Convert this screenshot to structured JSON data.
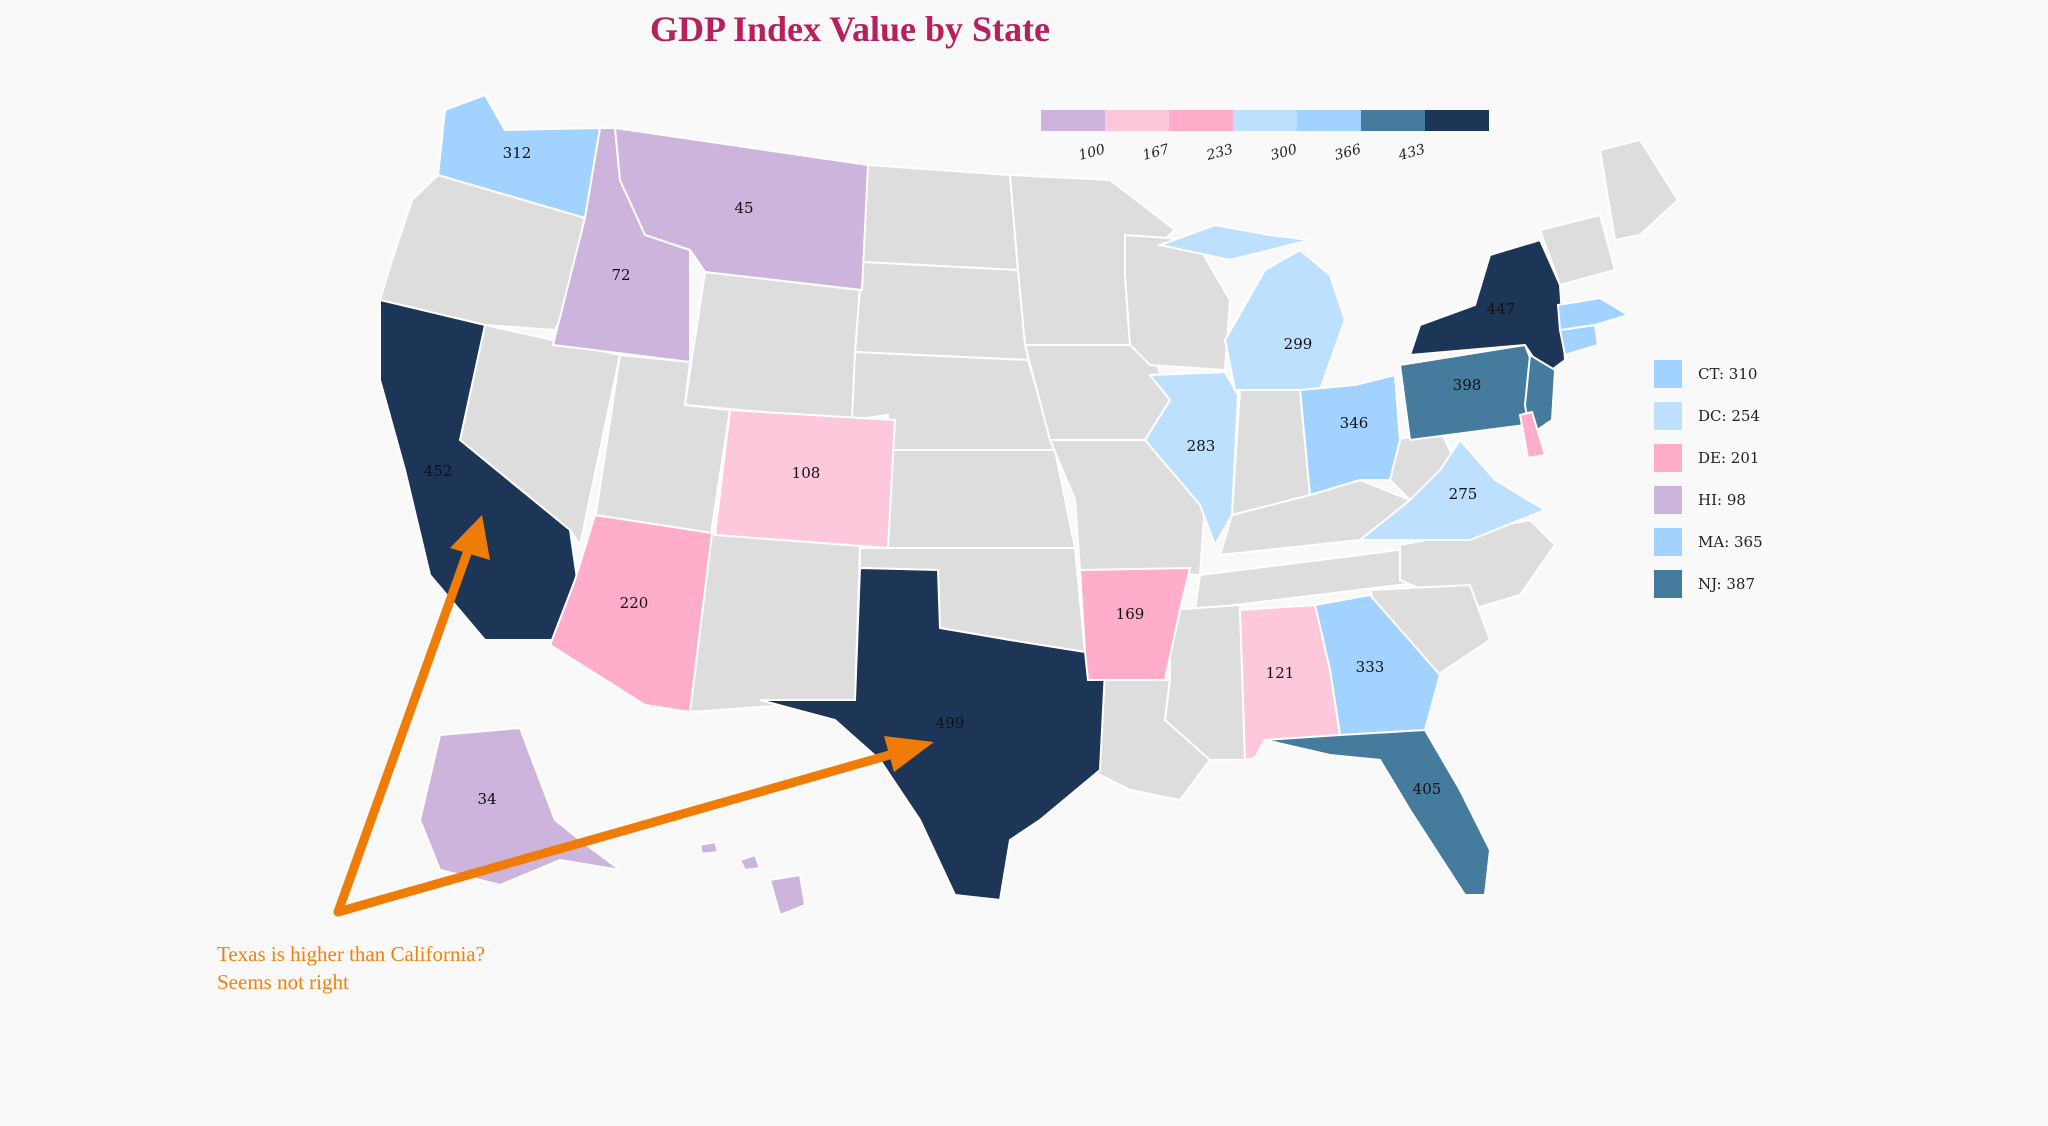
{
  "title": "GDP Index Value by State",
  "colors": {
    "no_data": "#dddddd",
    "title": "#b5205d",
    "annotation": "#f08010",
    "arrow": "#f07c08"
  },
  "color_scale": {
    "colors": [
      "#cdb4dc",
      "#fec8dc",
      "#ffadca",
      "#bde0fe",
      "#a2d2ff",
      "#457b9d",
      "#1d3557"
    ],
    "ticks": [
      "100",
      "167",
      "233",
      "300",
      "366",
      "433"
    ]
  },
  "states": [
    {
      "id": "WA",
      "value": "312"
    },
    {
      "id": "MT",
      "value": "45"
    },
    {
      "id": "ID",
      "value": "72"
    },
    {
      "id": "CA",
      "value": "452"
    },
    {
      "id": "CO",
      "value": "108"
    },
    {
      "id": "AZ",
      "value": "220"
    },
    {
      "id": "TX",
      "value": "499"
    },
    {
      "id": "AR",
      "value": "169"
    },
    {
      "id": "IL",
      "value": "283"
    },
    {
      "id": "MI",
      "value": "299"
    },
    {
      "id": "OH",
      "value": "346"
    },
    {
      "id": "PA",
      "value": "398"
    },
    {
      "id": "NY",
      "value": "447"
    },
    {
      "id": "VA",
      "value": "275"
    },
    {
      "id": "GA",
      "value": "333"
    },
    {
      "id": "AL",
      "value": "121"
    },
    {
      "id": "FL",
      "value": "405"
    },
    {
      "id": "AK",
      "value": "34"
    }
  ],
  "legend": [
    {
      "label": "CT: 310",
      "color": "#a2d2ff"
    },
    {
      "label": "DC: 254",
      "color": "#bde0fe"
    },
    {
      "label": "DE: 201",
      "color": "#ffadca"
    },
    {
      "label": "HI: 98",
      "color": "#cdb4dc"
    },
    {
      "label": "MA: 365",
      "color": "#a2d2ff"
    },
    {
      "label": "NJ: 387",
      "color": "#457b9d"
    }
  ],
  "annotation": {
    "line1": "Texas is higher than California?",
    "line2": "Seems not right"
  }
}
